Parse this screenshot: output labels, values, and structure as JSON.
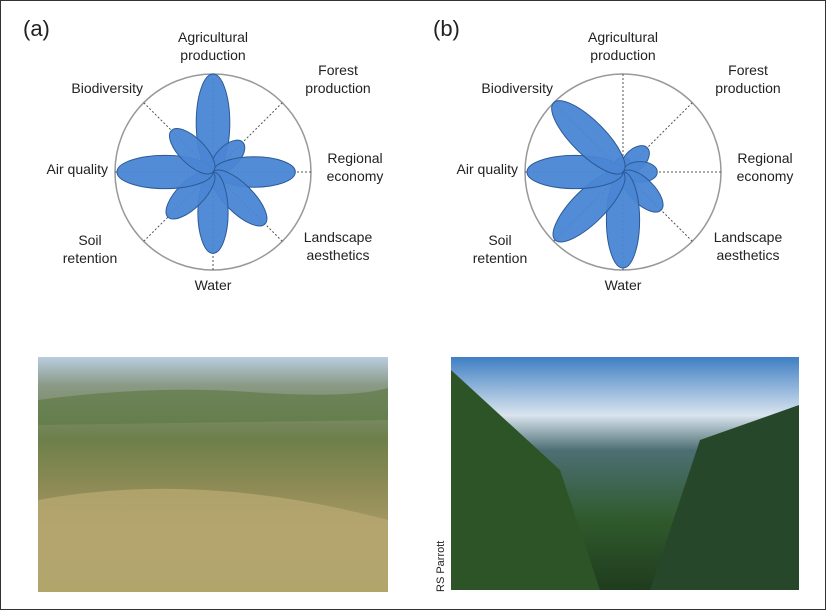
{
  "chart_data": [
    {
      "type": "petal",
      "title": "(a)",
      "categories": [
        [
          "Agricultural",
          "production"
        ],
        [
          "Forest",
          "production"
        ],
        [
          "Regional",
          "economy"
        ],
        [
          "Landscape",
          "aesthetics"
        ],
        [
          "Water"
        ],
        [
          "Soil",
          "retention"
        ],
        [
          "Air quality"
        ],
        [
          "Biodiversity"
        ]
      ],
      "values": [
        1.0,
        0.43,
        0.84,
        0.75,
        0.83,
        0.65,
        0.98,
        0.6
      ],
      "rlim": [
        0,
        1
      ],
      "color": "#4a86d4"
    },
    {
      "type": "petal",
      "title": "(b)",
      "categories": [
        [
          "Agricultural",
          "production"
        ],
        [
          "Forest",
          "production"
        ],
        [
          "Regional",
          "economy"
        ],
        [
          "Landscape",
          "aesthetics"
        ],
        [
          "Water"
        ],
        [
          "Soil",
          "retention"
        ],
        [
          "Air quality"
        ],
        [
          "Biodiversity"
        ]
      ],
      "values": [
        0.15,
        0.35,
        0.35,
        0.55,
        0.98,
        0.98,
        0.98,
        1.0
      ],
      "rlim": [
        0,
        1
      ],
      "color": "#4a86d4"
    }
  ],
  "photo_credit": "RS Parrott"
}
